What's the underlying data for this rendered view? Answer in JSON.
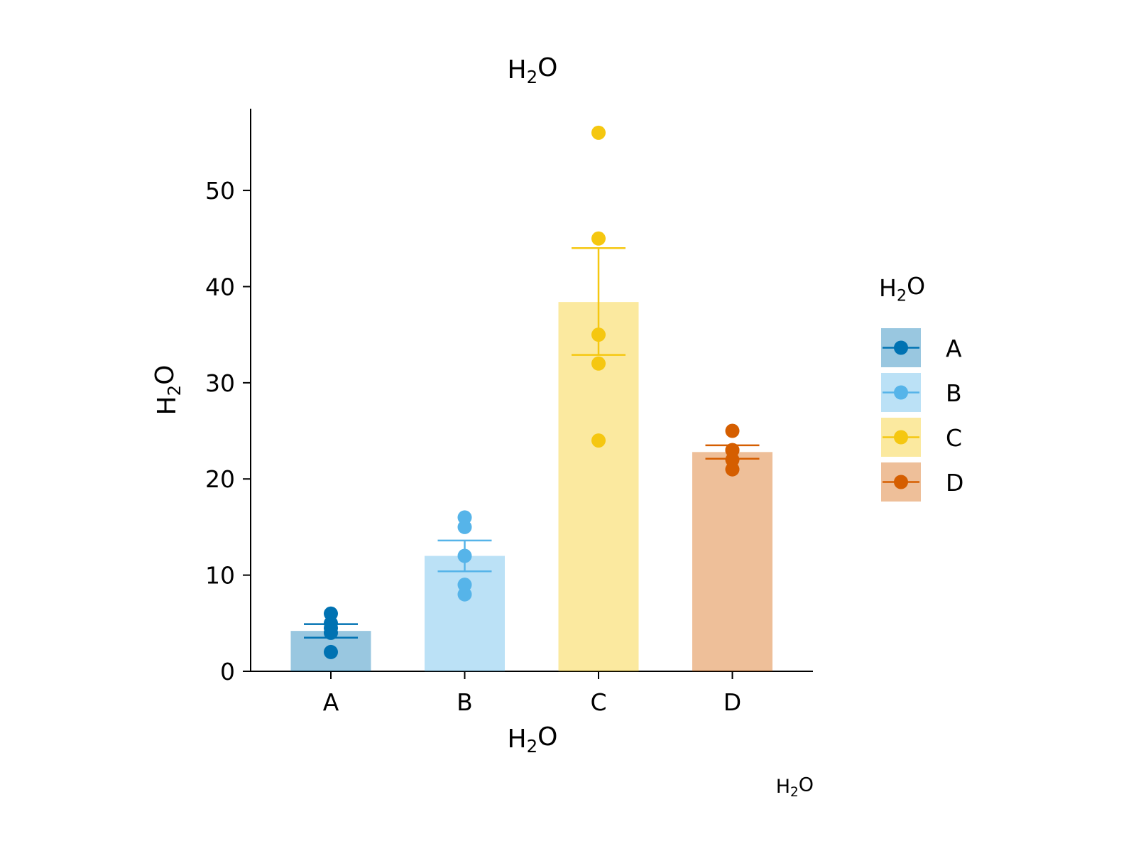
{
  "chart_data": {
    "type": "bar",
    "title": "H₂O",
    "title_main": "H",
    "title_sub": "2",
    "title_tail": "O",
    "xlabel": "H₂O",
    "ylabel": "H₂O",
    "caption": "H₂O",
    "categories": [
      "A",
      "B",
      "C",
      "D"
    ],
    "colors": [
      "#0072B2",
      "#56B4E9",
      "#F5C710",
      "#D55E00"
    ],
    "bar_opacity": 0.4,
    "ylim": [
      0,
      58.5
    ],
    "yticks": [
      0,
      10,
      20,
      30,
      40,
      50
    ],
    "grid": false,
    "legend": {
      "title": "H₂O",
      "placement": "right",
      "entries": [
        "A",
        "B",
        "C",
        "D"
      ]
    },
    "series": [
      {
        "category": "A",
        "mean": 4.2,
        "sem_low": 3.5,
        "sem_high": 4.9,
        "points": [
          2,
          4,
          4.5,
          5,
          6
        ]
      },
      {
        "category": "B",
        "mean": 12.0,
        "sem_low": 10.4,
        "sem_high": 13.6,
        "points": [
          8,
          9,
          12,
          15,
          16
        ]
      },
      {
        "category": "C",
        "mean": 38.4,
        "sem_low": 32.9,
        "sem_high": 44.0,
        "points": [
          24,
          32,
          35,
          45,
          56
        ]
      },
      {
        "category": "D",
        "mean": 22.8,
        "sem_low": 22.1,
        "sem_high": 23.5,
        "points": [
          21,
          22,
          23,
          23,
          25
        ]
      }
    ]
  }
}
